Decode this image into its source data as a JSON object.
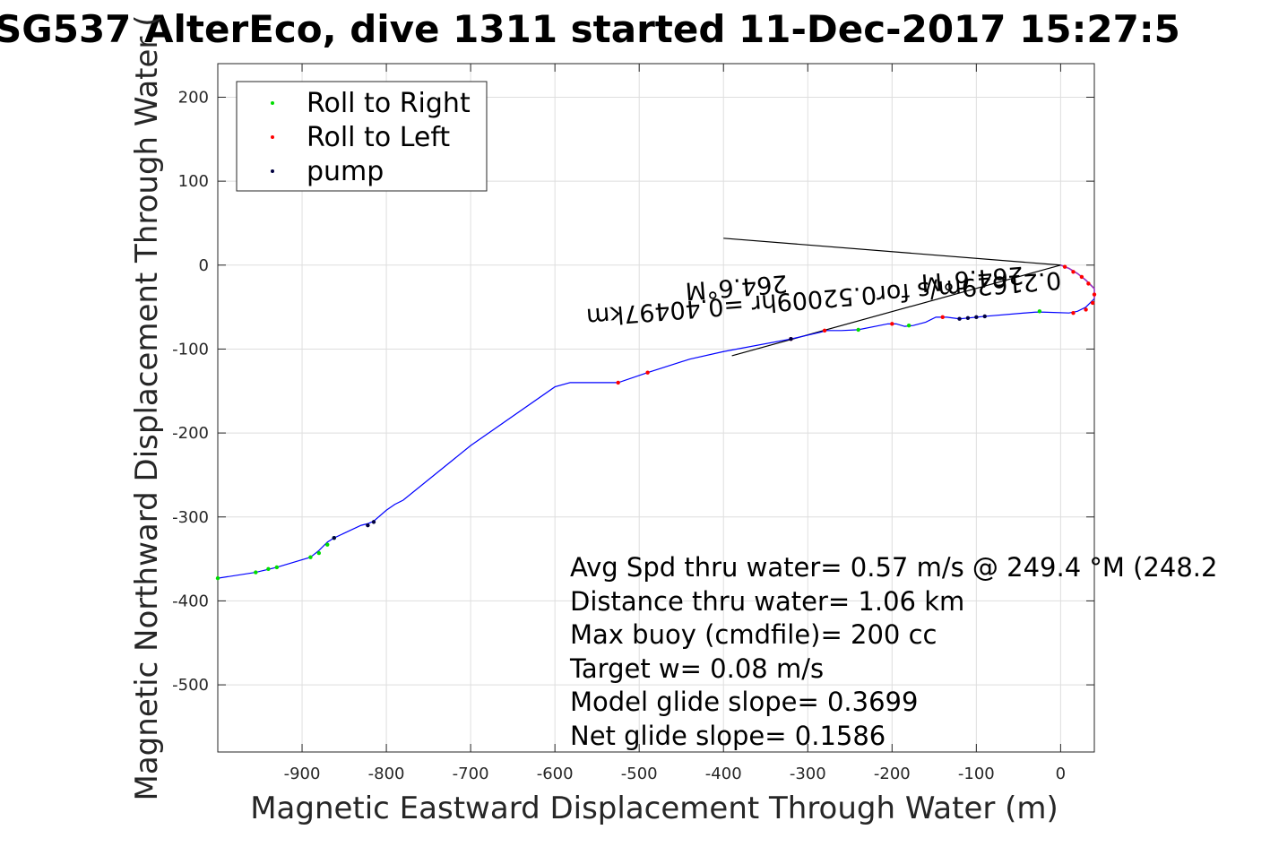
{
  "chart_data": {
    "type": "line",
    "title": "SG537 AlterEco, dive 1311 started 11-Dec-2017 15:27:5",
    "xlabel": "Magnetic Eastward Displacement Through Water (m)",
    "ylabel": "Magnetic Northward Displacement Through Water (",
    "xlim": [
      -1000,
      40
    ],
    "ylim": [
      -580,
      240
    ],
    "xticks": [
      -900,
      -800,
      -700,
      -600,
      -500,
      -400,
      -300,
      -200,
      -100,
      0
    ],
    "yticks": [
      200,
      100,
      0,
      -100,
      -200,
      -300,
      -400,
      -500
    ],
    "grid": true,
    "legend_position": "top-left",
    "legend": [
      "Roll to Right",
      "Roll to Left",
      "pump"
    ],
    "colors": {
      "track": "#0000ff",
      "track_return": "#9a2fbf",
      "roll_right": "#00dd00",
      "roll_left": "#ff0000",
      "pump": "#000040",
      "lines": "#000000"
    },
    "track": {
      "x": [
        -1000,
        -955,
        -930,
        -890,
        -880,
        -870,
        -862,
        -830,
        -822,
        -815,
        -800,
        -790,
        -780,
        -700,
        -600,
        -582,
        -570,
        -525,
        -490,
        -440,
        -400,
        -320,
        -285,
        -278,
        -260,
        -240,
        -215,
        -205,
        -195,
        -185,
        -175,
        -160,
        -148,
        -135,
        -120,
        -110,
        -100,
        -90,
        -30,
        -20,
        10,
        20,
        30,
        40,
        40,
        30,
        20,
        10,
        0
      ],
      "y": [
        -373,
        -366,
        -360,
        -348,
        -340,
        -330,
        -325,
        -310,
        -308,
        -305,
        -292,
        -285,
        -280,
        -215,
        -145,
        -140,
        -140,
        -140,
        -128,
        -112,
        -103,
        -88,
        -80,
        -78,
        -78,
        -77,
        -72,
        -70,
        -70,
        -73,
        -72,
        -68,
        -62,
        -62,
        -64,
        -63,
        -62,
        -61,
        -56,
        -56,
        -57,
        -55,
        -50,
        -40,
        -28,
        -18,
        -10,
        -4,
        0
      ]
    },
    "roll_right": {
      "x": [
        -1000,
        -955,
        -940,
        -930,
        -890,
        -880,
        -870,
        -862,
        -240,
        -180,
        -25
      ],
      "y": [
        -373,
        -366,
        -362,
        -360,
        -348,
        -343,
        -333,
        -325,
        -77,
        -72,
        -55
      ]
    },
    "roll_left": {
      "x": [
        -525,
        -490,
        -320,
        -280,
        -200,
        -140,
        15,
        30,
        38,
        40,
        33,
        25,
        15,
        5
      ],
      "y": [
        -140,
        -128,
        -88,
        -78,
        -70,
        -62,
        -57,
        -53,
        -45,
        -35,
        -22,
        -14,
        -8,
        -2
      ]
    },
    "pump": {
      "x": [
        -862,
        -822,
        -815,
        -320,
        -120,
        -110,
        -100,
        -90
      ],
      "y": [
        -325,
        -310,
        -306,
        -88,
        -64,
        -63,
        -62,
        -61
      ]
    },
    "drift_lines": [
      {
        "x": [
          -400,
          0
        ],
        "y": [
          32,
          0
        ]
      },
      {
        "x": [
          -390,
          0
        ],
        "y": [
          -108,
          0
        ]
      }
    ],
    "rotated_labels": [
      "0.21629m/s for0.52009hr =0.40497km",
      "264.6°M",
      "264.6°M"
    ],
    "annotations": [
      "Avg Spd thru water=  0.57 m/s @ 249.4 °M (248.2",
      "Distance thru water=  1.06 km",
      "Max buoy (cmdfile)= 200 cc",
      "Target w= 0.08 m/s",
      "Model glide slope= 0.3699",
      "Net glide slope= 0.1586"
    ]
  }
}
